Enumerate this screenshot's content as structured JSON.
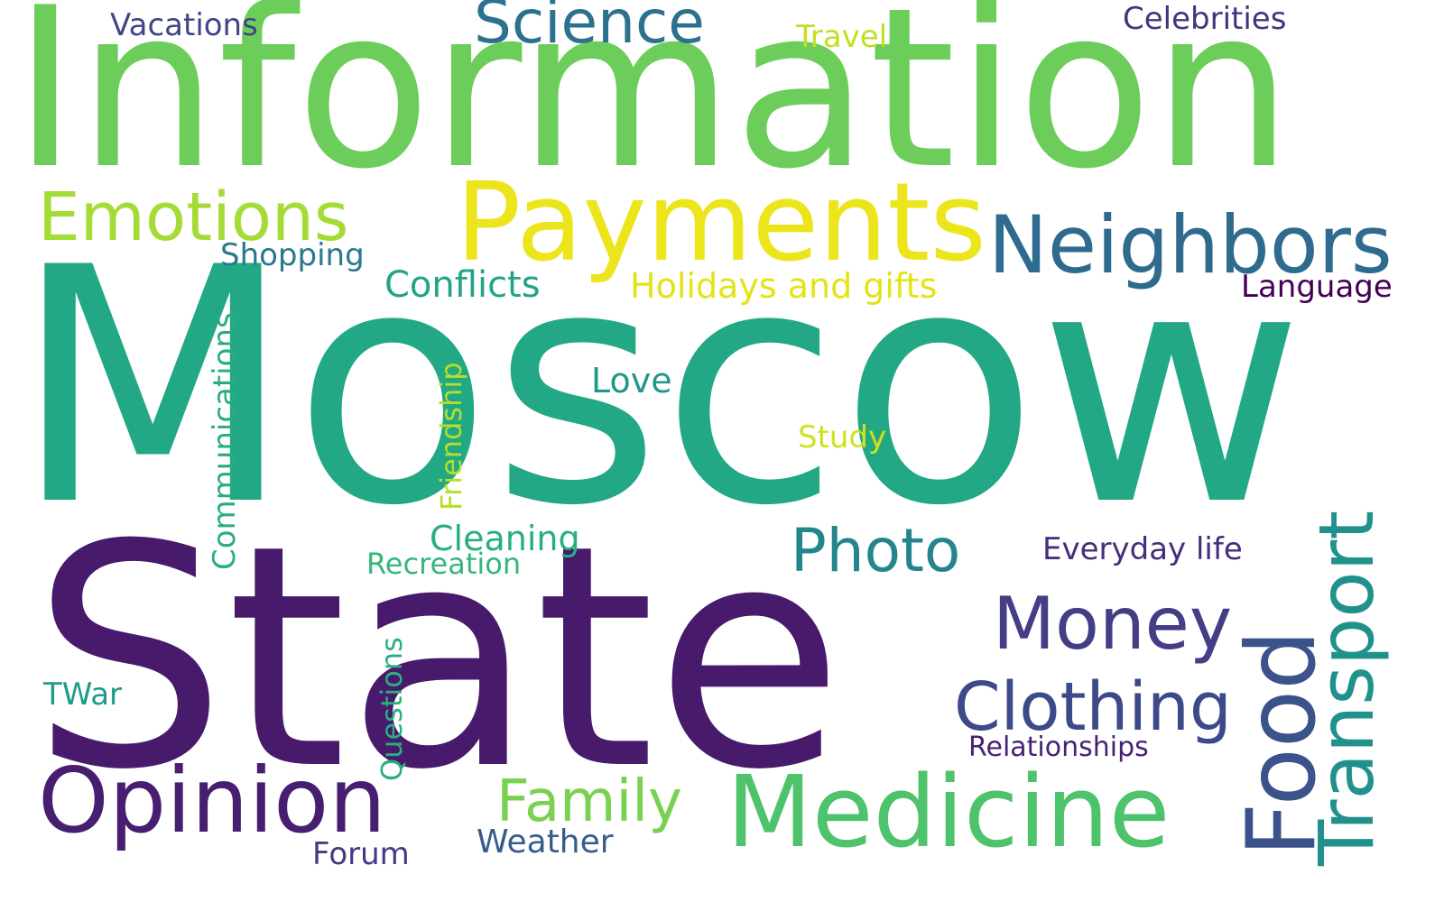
{
  "words": [
    {
      "key": "information",
      "text": "Information",
      "color": "#6ccd5a"
    },
    {
      "key": "moscow",
      "text": "Moscow",
      "color": "#22a884"
    },
    {
      "key": "state",
      "text": "State",
      "color": "#481a6c"
    },
    {
      "key": "payments",
      "text": "Payments",
      "color": "#ece51b"
    },
    {
      "key": "neighbors",
      "text": "Neighbors",
      "color": "#2f6b8e"
    },
    {
      "key": "emotions",
      "text": "Emotions",
      "color": "#a5db36"
    },
    {
      "key": "science",
      "text": "Science",
      "color": "#2c728e"
    },
    {
      "key": "opinion",
      "text": "Opinion",
      "color": "#481f70"
    },
    {
      "key": "medicine",
      "text": "Medicine",
      "color": "#4ec36b"
    },
    {
      "key": "food",
      "text": "Food",
      "color": "#3b528b"
    },
    {
      "key": "transport",
      "text": "Transport",
      "color": "#21918c"
    },
    {
      "key": "money",
      "text": "Money",
      "color": "#433e85"
    },
    {
      "key": "clothing",
      "text": "Clothing",
      "color": "#3e4989"
    },
    {
      "key": "photo",
      "text": "Photo",
      "color": "#25858e"
    },
    {
      "key": "family",
      "text": "Family",
      "color": "#7ad151"
    },
    {
      "key": "holidays",
      "text": "Holidays and gifts",
      "color": "#e2e418"
    },
    {
      "key": "conflicts",
      "text": "Conflicts",
      "color": "#20a386"
    },
    {
      "key": "shopping",
      "text": "Shopping",
      "color": "#2a788e"
    },
    {
      "key": "love",
      "text": "Love",
      "color": "#1f988b"
    },
    {
      "key": "study",
      "text": "Study",
      "color": "#d0e11c"
    },
    {
      "key": "friendship",
      "text": "Friendship",
      "color": "#b5de2b"
    },
    {
      "key": "communications",
      "text": "Communications",
      "color": "#27ad81"
    },
    {
      "key": "cleaning",
      "text": "Cleaning",
      "color": "#29af7f"
    },
    {
      "key": "recreation",
      "text": "Recreation",
      "color": "#35b779"
    },
    {
      "key": "questions",
      "text": "Questions",
      "color": "#2ab07f"
    },
    {
      "key": "twar",
      "text": "TWar",
      "color": "#1e9b8a"
    },
    {
      "key": "vacations",
      "text": "Vacations",
      "color": "#414487"
    },
    {
      "key": "travel",
      "text": "Travel",
      "color": "#c2df23"
    },
    {
      "key": "celebrities",
      "text": "Celebrities",
      "color": "#46337e"
    },
    {
      "key": "language",
      "text": "Language",
      "color": "#440154"
    },
    {
      "key": "everyday",
      "text": "Everyday life",
      "color": "#472d7b"
    },
    {
      "key": "relationships",
      "text": "Relationships",
      "color": "#482173"
    },
    {
      "key": "weather",
      "text": "Weather",
      "color": "#365c8d"
    },
    {
      "key": "forum",
      "text": "Forum",
      "color": "#443a83"
    }
  ]
}
